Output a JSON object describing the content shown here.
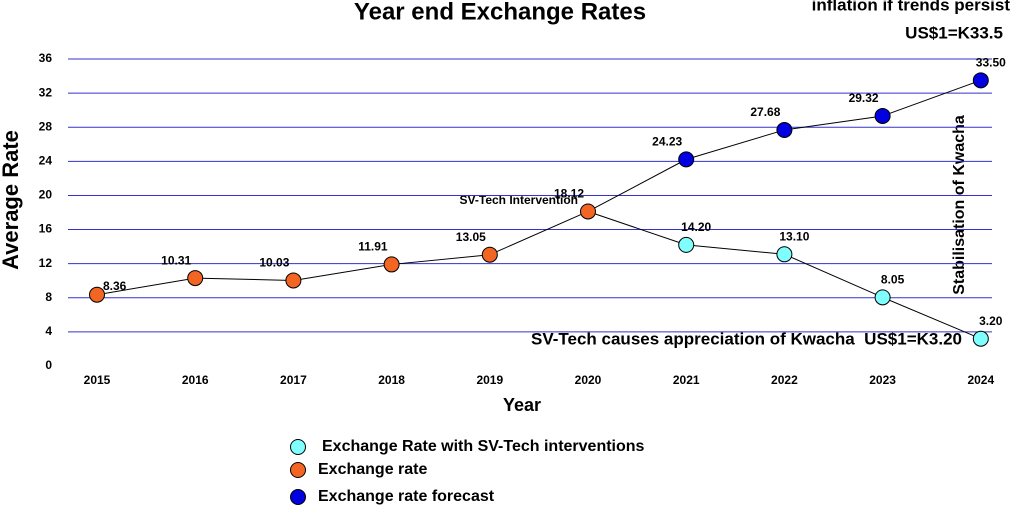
{
  "chart_data": {
    "type": "line",
    "title": "Year end Exchange Rates",
    "x_label": "Year",
    "y_label": "Average Rate",
    "categories": [
      "2015",
      "2016",
      "2017",
      "2018",
      "2019",
      "2020",
      "2021",
      "2022",
      "2023",
      "2024"
    ],
    "series": [
      {
        "name": "Exchange Rate with SV-Tech interventions",
        "color": "#80ffff",
        "values": [
          null,
          null,
          null,
          null,
          null,
          null,
          14.2,
          13.1,
          8.05,
          3.2
        ],
        "value_labels": [
          null,
          null,
          null,
          null,
          null,
          null,
          "14.20",
          "13.10",
          "8.05",
          "3.20"
        ]
      },
      {
        "name": "Exchange rate",
        "color": "#f26522",
        "values": [
          8.36,
          10.31,
          10.03,
          11.91,
          13.05,
          18.12,
          null,
          null,
          null,
          null
        ],
        "value_labels": [
          "8.36",
          "10.31",
          "10.03",
          "11.91",
          "13.05",
          "18.12",
          null,
          null,
          null,
          null
        ]
      },
      {
        "name": "Exchange rate forecast",
        "color": "#0000e0",
        "values": [
          null,
          null,
          null,
          null,
          null,
          null,
          24.23,
          27.68,
          29.32,
          33.5
        ],
        "value_labels": [
          null,
          null,
          null,
          null,
          null,
          null,
          "24.23",
          "27.68",
          "29.32",
          "33.50"
        ]
      }
    ],
    "ylim": [
      0,
      36
    ],
    "yticks": [
      0,
      4,
      8,
      12,
      16,
      20,
      24,
      28,
      32,
      36
    ],
    "grid": true,
    "grid_color": "#3333cc",
    "annotations": [
      "inflation if trends persist",
      "US$1=K33.5",
      "SV-Tech Intervention",
      "Stabilisation of Kwacha",
      "SV-Tech causes appreciation of Kwacha  US$1=K3.20"
    ]
  }
}
